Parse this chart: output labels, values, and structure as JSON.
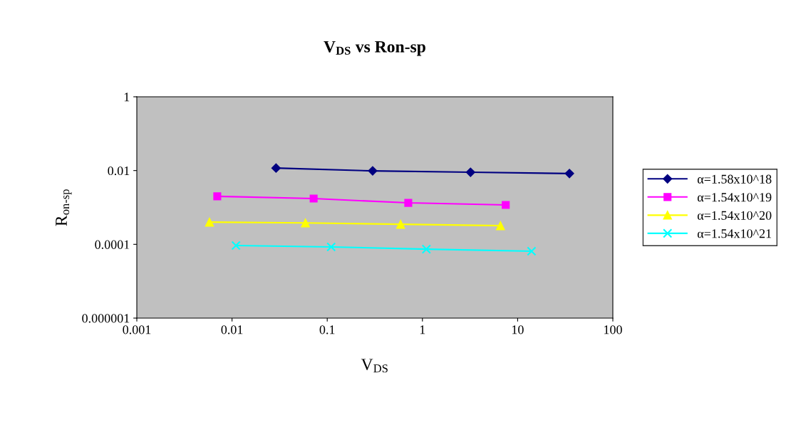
{
  "chart_data": {
    "type": "line",
    "title": "V$_{DS}$ vs Ron-sp",
    "xlabel": "V$_{DS}$",
    "ylabel": "R$_{on-sp}$",
    "log": "xy",
    "xlim": [
      0.001,
      100
    ],
    "xticks": [
      {
        "value": 0.001,
        "label": "0.001"
      },
      {
        "value": 0.01,
        "label": "0.01"
      },
      {
        "value": 0.1,
        "label": "0.1"
      },
      {
        "value": 1,
        "label": "1"
      },
      {
        "value": 10,
        "label": "10"
      },
      {
        "value": 100,
        "label": "100"
      }
    ],
    "ylim": [
      1e-06,
      1
    ],
    "yticks": [
      {
        "value": 1e-06,
        "label": "0.000001"
      },
      {
        "value": 0.0001,
        "label": "0.0001"
      },
      {
        "value": 0.01,
        "label": "0.01"
      },
      {
        "value": 1,
        "label": "1"
      }
    ],
    "grid": false,
    "legend": "right",
    "line_style": "solid",
    "series": [
      {
        "name": "α=1.58x10^18",
        "color": "#000080",
        "marker": "diamond",
        "x": [
          0.029,
          0.3,
          3.2,
          35
        ],
        "values": [
          0.0117,
          0.0098,
          0.009,
          0.0083
        ]
      },
      {
        "name": "α=1.54x10^19",
        "color": "#ff00ff",
        "marker": "square",
        "x": [
          0.007,
          0.072,
          0.71,
          7.5
        ],
        "values": [
          0.002,
          0.00174,
          0.00133,
          0.00117
        ]
      },
      {
        "name": "α=1.54x10^20",
        "color": "#ffff00",
        "marker": "triangle",
        "x": [
          0.0058,
          0.059,
          0.59,
          6.6
        ],
        "values": [
          0.0004,
          0.00038,
          0.00035,
          0.00032
        ]
      },
      {
        "name": "α=1.54x10^21",
        "color": "#00ffff",
        "marker": "cross",
        "x": [
          0.011,
          0.11,
          1.1,
          14
        ],
        "values": [
          9.3e-05,
          8.5e-05,
          7.4e-05,
          6.5e-05
        ]
      }
    ]
  }
}
